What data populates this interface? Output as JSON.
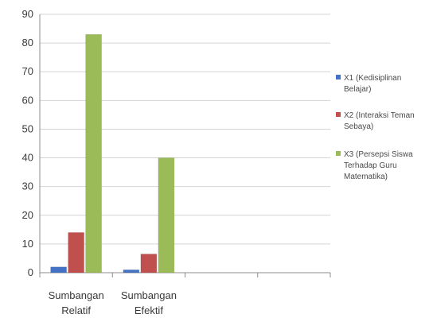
{
  "chart_data": {
    "type": "bar",
    "categories": [
      [
        "Sumbangan",
        "Relatif"
      ],
      [
        "Sumbangan",
        "Efektif"
      ],
      [
        "",
        ""
      ],
      [
        "",
        ""
      ]
    ],
    "series": [
      {
        "name": [
          "X1 (Kedisiplinan",
          "Belajar)"
        ],
        "color": "#4472c4",
        "values": [
          2,
          1,
          null,
          null
        ]
      },
      {
        "name": [
          "X2 (Interaksi Teman",
          "Sebaya)"
        ],
        "color": "#c0504d",
        "values": [
          14,
          6.5,
          null,
          null
        ]
      },
      {
        "name": [
          "X3 (Persepsi Siswa",
          "Terhadap Guru",
          "Matematika)"
        ],
        "color": "#9bbb59",
        "values": [
          83,
          40,
          null,
          null
        ]
      }
    ],
    "y_ticks": [
      0,
      10,
      20,
      30,
      40,
      50,
      60,
      70,
      80,
      90
    ],
    "ylim": [
      0,
      90
    ],
    "grid": true,
    "legend_position": "right"
  }
}
